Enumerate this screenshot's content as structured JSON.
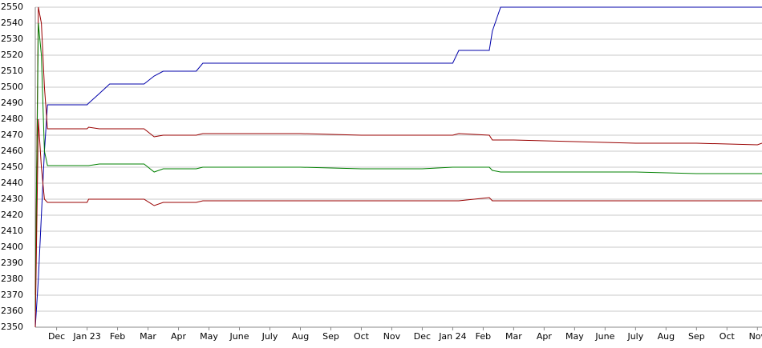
{
  "chart_data": {
    "type": "line",
    "x": [
      -0.7,
      -0.6,
      -0.5,
      -0.4,
      -0.3,
      0,
      1,
      1.05,
      1.4,
      1.74,
      2.87,
      3.2,
      3.5,
      4.58,
      4.8,
      6,
      8,
      10,
      12,
      13,
      13.2,
      14.2,
      14.3,
      14.57,
      15,
      17,
      19,
      21,
      23,
      23.15
    ],
    "series": [
      {
        "color": "#0000aa",
        "values": [
          2350,
          2380,
          2420,
          2460,
          2489,
          2489,
          2489,
          2490,
          2496,
          2502,
          2502,
          2507,
          2510,
          2510,
          2515,
          2515,
          2515,
          2515,
          2515,
          2515,
          2523,
          2523,
          2535,
          2550,
          2550,
          2550,
          2550,
          2550,
          2550,
          2550
        ]
      },
      {
        "color": "#990000",
        "values": [
          2370,
          2550,
          2540,
          2500,
          2474,
          2474,
          2474,
          2475,
          2474,
          2474,
          2474,
          2469,
          2470,
          2470,
          2471,
          2471,
          2471,
          2470,
          2470,
          2470,
          2471,
          2470,
          2467,
          2467,
          2467,
          2466,
          2465,
          2465,
          2464,
          2465
        ]
      },
      {
        "color": "#008000",
        "values": [
          2360,
          2540,
          2520,
          2460,
          2451,
          2451,
          2451,
          2451,
          2452,
          2452,
          2452,
          2447,
          2449,
          2449,
          2450,
          2450,
          2450,
          2449,
          2449,
          2450,
          2450,
          2450,
          2448,
          2447,
          2447,
          2447,
          2447,
          2446,
          2446,
          2446
        ]
      },
      {
        "color": "#990000",
        "values": [
          2350,
          2480,
          2450,
          2430,
          2428,
          2428,
          2428,
          2430,
          2430,
          2430,
          2430,
          2426,
          2428,
          2428,
          2429,
          2429,
          2429,
          2429,
          2429,
          2429,
          2429,
          2431,
          2429,
          2429,
          2429,
          2429,
          2429,
          2429,
          2429,
          2429
        ]
      }
    ],
    "xlim": [
      -0.7,
      23.15
    ],
    "xticks": [
      {
        "value": 0,
        "label": "Dec"
      },
      {
        "value": 1,
        "label": "Jan 23"
      },
      {
        "value": 2,
        "label": "Feb"
      },
      {
        "value": 3,
        "label": "Mar"
      },
      {
        "value": 4,
        "label": "Apr"
      },
      {
        "value": 5,
        "label": "May"
      },
      {
        "value": 6,
        "label": "June"
      },
      {
        "value": 7,
        "label": "July"
      },
      {
        "value": 8,
        "label": "Aug"
      },
      {
        "value": 9,
        "label": "Sep"
      },
      {
        "value": 10,
        "label": "Oct"
      },
      {
        "value": 11,
        "label": "Nov"
      },
      {
        "value": 12,
        "label": "Dec"
      },
      {
        "value": 13,
        "label": "Jan 24"
      },
      {
        "value": 14,
        "label": "Feb"
      },
      {
        "value": 15,
        "label": "Mar"
      },
      {
        "value": 16,
        "label": "Apr"
      },
      {
        "value": 17,
        "label": "May"
      },
      {
        "value": 18,
        "label": "June"
      },
      {
        "value": 19,
        "label": "July"
      },
      {
        "value": 20,
        "label": "Aug"
      },
      {
        "value": 21,
        "label": "Sep"
      },
      {
        "value": 22,
        "label": "Oct"
      },
      {
        "value": 23,
        "label": "Nov"
      }
    ],
    "ylim": [
      2350,
      2550
    ],
    "yticks": [
      2350,
      2360,
      2370,
      2380,
      2390,
      2400,
      2410,
      2420,
      2430,
      2440,
      2450,
      2460,
      2470,
      2480,
      2490,
      2500,
      2510,
      2520,
      2530,
      2540,
      2550
    ],
    "grid": true
  }
}
